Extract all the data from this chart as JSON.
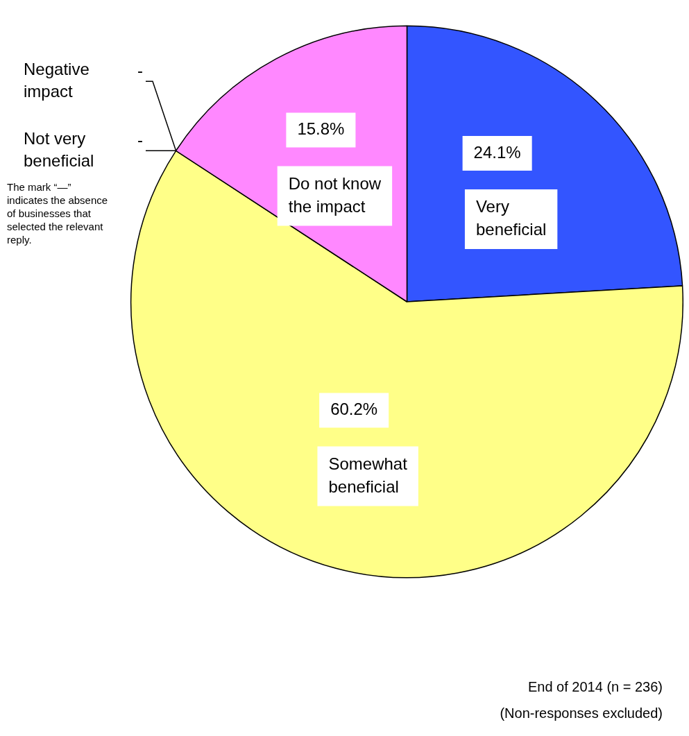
{
  "chart_data": {
    "type": "pie",
    "categories": [
      "Very beneficial",
      "Somewhat beneficial",
      "Not very beneficial",
      "Negative impact",
      "Do not know the impact"
    ],
    "values": [
      24.1,
      60.2,
      0,
      0,
      15.8
    ],
    "value_labels": [
      "24.1%",
      "60.2%",
      "-",
      "-",
      "15.8%"
    ],
    "colors": [
      "#3355ff",
      "#ffff88",
      "#ccccff",
      "#ff99cc",
      "#ff88ff"
    ],
    "legend": false,
    "annotations": [
      "The mark “—” indicates the absence of businesses that selected the relevant reply.",
      "End of 2014 (n = 236)",
      "(Non-responses excluded)"
    ]
  }
}
